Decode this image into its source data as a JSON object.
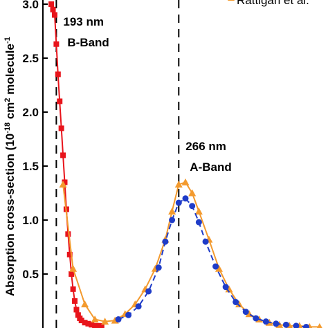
{
  "chart_data": {
    "type": "scatter",
    "ylabel_main": "Absorption cross-section (10",
    "ylabel_exp": "-18",
    "ylabel_mid": " cm",
    "ylabel_exp2": "2",
    "ylabel_end": " molecule",
    "ylabel_exp3": "-1",
    "xlim": [
      185,
      355
    ],
    "ylim": [
      0,
      3.0
    ],
    "yticks": [
      "0.5",
      "1.0",
      "1.5",
      "2.0",
      "2.5",
      "3.0"
    ],
    "ytick_values": [
      0.5,
      1.0,
      1.5,
      2.0,
      2.5,
      3.0
    ],
    "annotations": [
      {
        "line1": "193 nm",
        "line2": "B-Band",
        "x": 193
      },
      {
        "line1": "266 nm",
        "line2": "A-Band",
        "x": 266
      }
    ],
    "legend_entry": "Rattigan et al.",
    "colors": {
      "red": "#e8141b",
      "orange": "#f39a2e",
      "blue": "#1f3cc8"
    },
    "series": [
      {
        "marker": "square",
        "color": "#e8141b",
        "x": [
          190,
          191,
          192,
          193,
          194,
          195,
          196,
          197,
          198,
          199,
          200,
          201,
          202,
          203,
          204,
          205,
          206,
          207,
          208,
          210,
          212,
          214,
          216,
          218,
          220
        ],
        "y": [
          3.0,
          2.95,
          2.9,
          2.63,
          2.35,
          2.1,
          1.85,
          1.6,
          1.35,
          1.1,
          0.87,
          0.68,
          0.5,
          0.36,
          0.25,
          0.17,
          0.12,
          0.09,
          0.07,
          0.05,
          0.04,
          0.03,
          0.02,
          0.02,
          0.02
        ]
      },
      {
        "marker": "triangle",
        "color": "#f39a2e",
        "x": [
          197,
          203,
          210,
          216,
          222,
          228,
          234,
          240,
          246,
          252,
          258,
          262,
          266,
          270,
          274,
          278,
          284,
          290,
          296,
          302,
          308,
          314,
          320,
          326,
          332,
          338,
          344,
          350
        ],
        "y": [
          1.33,
          0.55,
          0.22,
          0.08,
          0.06,
          0.07,
          0.13,
          0.22,
          0.36,
          0.55,
          0.82,
          1.08,
          1.33,
          1.35,
          1.25,
          1.08,
          0.82,
          0.55,
          0.36,
          0.22,
          0.13,
          0.08,
          0.05,
          0.03,
          0.02,
          0.02,
          0.01,
          0.01
        ]
      },
      {
        "marker": "circle",
        "color": "#1f3cc8",
        "x": [
          230,
          236,
          242,
          248,
          254,
          258,
          262,
          266,
          270,
          274,
          278,
          282,
          288,
          294,
          300,
          306,
          312,
          318,
          324,
          330,
          336,
          342
        ],
        "y": [
          0.08,
          0.12,
          0.2,
          0.34,
          0.56,
          0.8,
          1.0,
          1.16,
          1.2,
          1.13,
          0.98,
          0.8,
          0.57,
          0.38,
          0.24,
          0.15,
          0.09,
          0.06,
          0.04,
          0.03,
          0.02,
          0.01
        ]
      }
    ]
  }
}
